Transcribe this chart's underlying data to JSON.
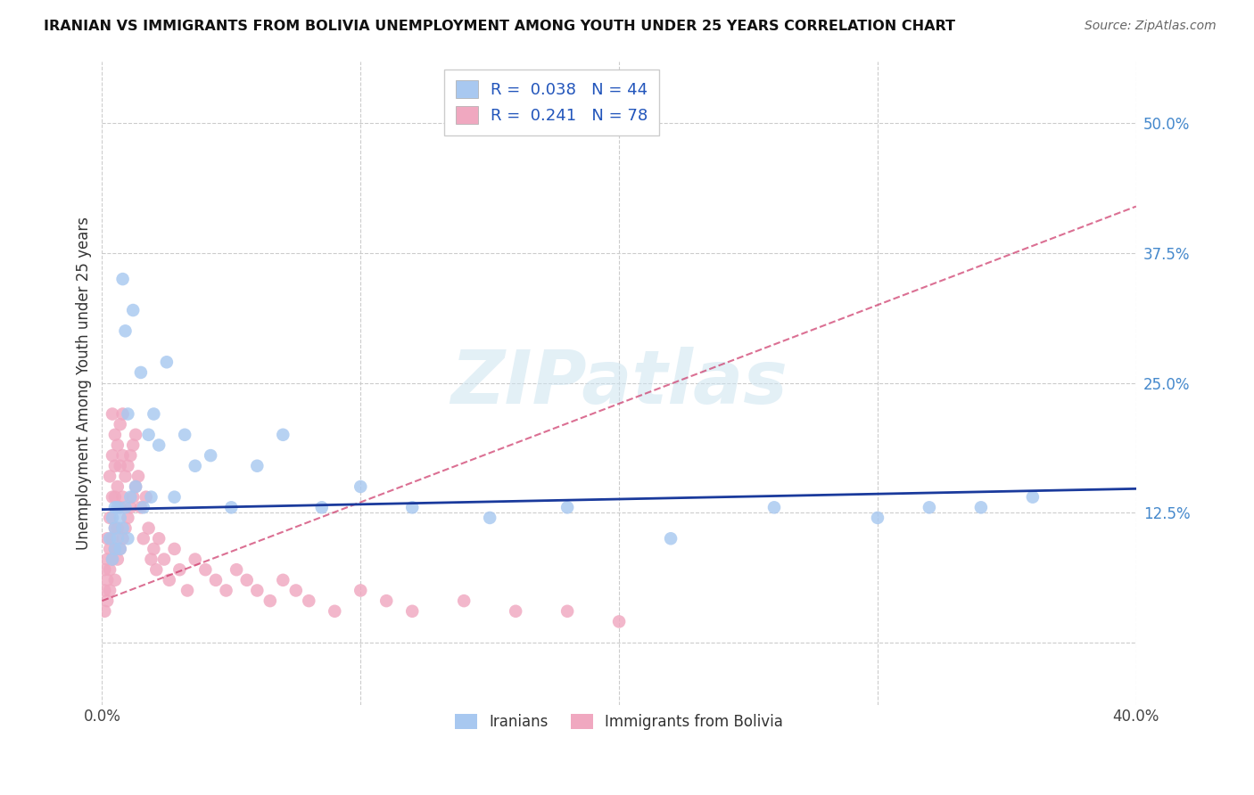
{
  "title": "IRANIAN VS IMMIGRANTS FROM BOLIVIA UNEMPLOYMENT AMONG YOUTH UNDER 25 YEARS CORRELATION CHART",
  "source": "Source: ZipAtlas.com",
  "ylabel": "Unemployment Among Youth under 25 years",
  "ytick_labels": [
    "",
    "12.5%",
    "25.0%",
    "37.5%",
    "50.0%"
  ],
  "ytick_values": [
    0,
    0.125,
    0.25,
    0.375,
    0.5
  ],
  "xmin": 0.0,
  "xmax": 0.4,
  "ymin": -0.06,
  "ymax": 0.56,
  "legend_iranians": "Iranians",
  "legend_bolivia": "Immigrants from Bolivia",
  "R_iranians": "0.038",
  "N_iranians": "44",
  "R_bolivia": "0.241",
  "N_bolivia": "78",
  "color_iranians": "#a8c8f0",
  "color_bolivia": "#f0a8c0",
  "line_color_iranians": "#1a3a9c",
  "line_color_bolivia": "#cc3366",
  "watermark": "ZIPatlas",
  "iranians_x": [
    0.003,
    0.004,
    0.004,
    0.005,
    0.005,
    0.005,
    0.006,
    0.006,
    0.007,
    0.007,
    0.008,
    0.008,
    0.009,
    0.009,
    0.01,
    0.01,
    0.011,
    0.012,
    0.013,
    0.015,
    0.016,
    0.018,
    0.019,
    0.02,
    0.022,
    0.025,
    0.028,
    0.032,
    0.036,
    0.042,
    0.05,
    0.06,
    0.07,
    0.085,
    0.1,
    0.12,
    0.15,
    0.18,
    0.22,
    0.26,
    0.3,
    0.32,
    0.34,
    0.36
  ],
  "iranians_y": [
    0.1,
    0.08,
    0.12,
    0.13,
    0.09,
    0.11,
    0.1,
    0.13,
    0.12,
    0.09,
    0.11,
    0.35,
    0.3,
    0.13,
    0.1,
    0.22,
    0.14,
    0.32,
    0.15,
    0.26,
    0.13,
    0.2,
    0.14,
    0.22,
    0.19,
    0.27,
    0.14,
    0.2,
    0.17,
    0.18,
    0.13,
    0.17,
    0.2,
    0.13,
    0.15,
    0.13,
    0.12,
    0.13,
    0.1,
    0.13,
    0.12,
    0.13,
    0.13,
    0.14
  ],
  "bolivia_x": [
    0.001,
    0.001,
    0.001,
    0.002,
    0.002,
    0.002,
    0.002,
    0.003,
    0.003,
    0.003,
    0.003,
    0.003,
    0.004,
    0.004,
    0.004,
    0.004,
    0.004,
    0.005,
    0.005,
    0.005,
    0.005,
    0.005,
    0.005,
    0.006,
    0.006,
    0.006,
    0.006,
    0.007,
    0.007,
    0.007,
    0.007,
    0.008,
    0.008,
    0.008,
    0.008,
    0.009,
    0.009,
    0.01,
    0.01,
    0.011,
    0.011,
    0.012,
    0.012,
    0.013,
    0.013,
    0.014,
    0.015,
    0.016,
    0.017,
    0.018,
    0.019,
    0.02,
    0.021,
    0.022,
    0.024,
    0.026,
    0.028,
    0.03,
    0.033,
    0.036,
    0.04,
    0.044,
    0.048,
    0.052,
    0.056,
    0.06,
    0.065,
    0.07,
    0.075,
    0.08,
    0.09,
    0.1,
    0.11,
    0.12,
    0.14,
    0.16,
    0.18,
    0.2
  ],
  "bolivia_y": [
    0.03,
    0.05,
    0.07,
    0.04,
    0.06,
    0.08,
    0.1,
    0.05,
    0.07,
    0.09,
    0.12,
    0.16,
    0.08,
    0.1,
    0.14,
    0.18,
    0.22,
    0.06,
    0.09,
    0.11,
    0.14,
    0.17,
    0.2,
    0.08,
    0.11,
    0.15,
    0.19,
    0.09,
    0.13,
    0.17,
    0.21,
    0.1,
    0.14,
    0.18,
    0.22,
    0.11,
    0.16,
    0.12,
    0.17,
    0.13,
    0.18,
    0.14,
    0.19,
    0.15,
    0.2,
    0.16,
    0.13,
    0.1,
    0.14,
    0.11,
    0.08,
    0.09,
    0.07,
    0.1,
    0.08,
    0.06,
    0.09,
    0.07,
    0.05,
    0.08,
    0.07,
    0.06,
    0.05,
    0.07,
    0.06,
    0.05,
    0.04,
    0.06,
    0.05,
    0.04,
    0.03,
    0.05,
    0.04,
    0.03,
    0.04,
    0.03,
    0.03,
    0.02
  ],
  "iran_line_x": [
    0.0,
    0.4
  ],
  "iran_line_y": [
    0.128,
    0.148
  ],
  "bolivia_line_x": [
    0.0,
    0.4
  ],
  "bolivia_line_y": [
    0.04,
    0.42
  ]
}
